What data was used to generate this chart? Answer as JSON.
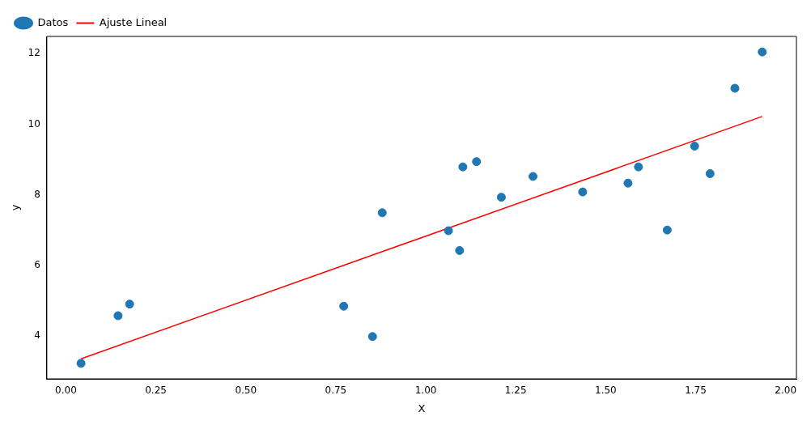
{
  "chart_data": {
    "type": "scatter",
    "xlabel": "X",
    "ylabel": "y",
    "xlim": [
      -0.053,
      2.03
    ],
    "ylim": [
      2.78,
      12.49
    ],
    "xticks": [
      {
        "value": 0,
        "label": "0.00"
      },
      {
        "value": 0.25,
        "label": "0.25"
      },
      {
        "value": 0.5,
        "label": "0.50"
      },
      {
        "value": 0.75,
        "label": "0.75"
      },
      {
        "value": 1,
        "label": "1.00"
      },
      {
        "value": 1.25,
        "label": "1.25"
      },
      {
        "value": 1.5,
        "label": "1.50"
      },
      {
        "value": 1.75,
        "label": "1.75"
      },
      {
        "value": 2,
        "label": "2.00"
      }
    ],
    "yticks": [
      4,
      6,
      8,
      10,
      12
    ],
    "legend": "top left",
    "grid": false,
    "marker": "circle",
    "series": [
      {
        "name": "Datos",
        "type": "scatter",
        "color": "#1f77b4",
        "x": [
          0.042,
          0.145,
          0.177,
          0.772,
          0.852,
          0.879,
          1.063,
          1.094,
          1.103,
          1.141,
          1.21,
          1.298,
          1.436,
          1.562,
          1.591,
          1.671,
          1.747,
          1.79,
          1.859,
          1.935
        ],
        "values": [
          3.22,
          4.57,
          4.9,
          4.84,
          3.98,
          7.49,
          6.98,
          6.42,
          8.79,
          8.94,
          7.93,
          8.52,
          8.08,
          8.33,
          8.79,
          7.0,
          9.38,
          8.6,
          11.02,
          12.05
        ]
      },
      {
        "name": "Ajuste Lineal",
        "type": "line",
        "color": "#ff0000",
        "marker": "none",
        "line_style": "solid",
        "x": [
          0.042,
          1.935
        ],
        "values": [
          3.35,
          10.22
        ]
      }
    ]
  }
}
